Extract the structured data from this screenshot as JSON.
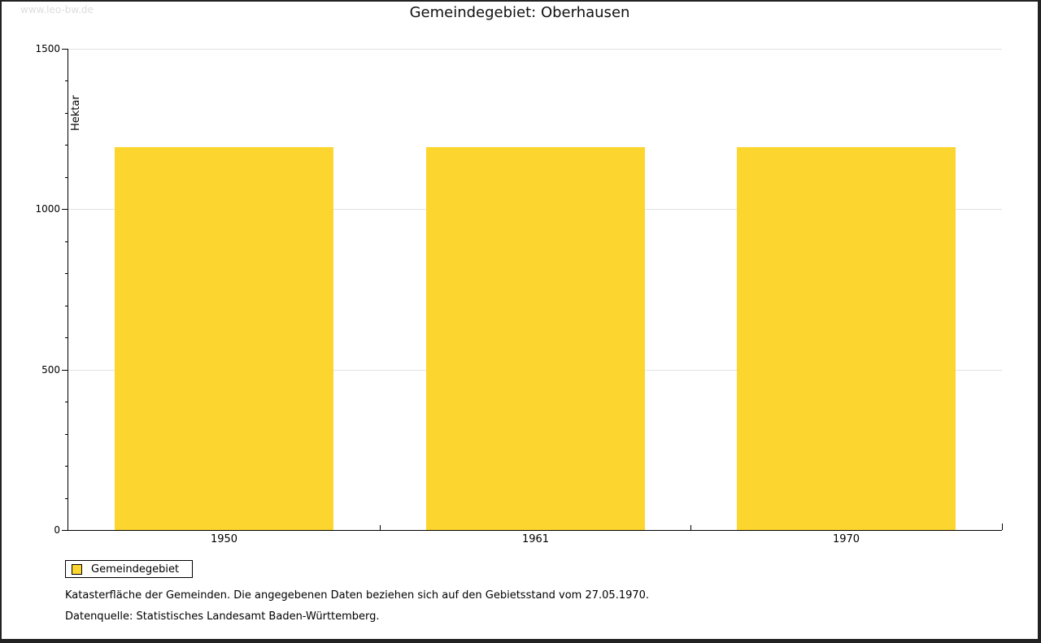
{
  "watermark": "www.leo-bw.de",
  "chart_data": {
    "type": "bar",
    "title": "Gemeindegebiet: Oberhausen",
    "xlabel": "",
    "ylabel": "Hektar",
    "categories": [
      "1950",
      "1961",
      "1970"
    ],
    "series": [
      {
        "name": "Gemeindegebiet",
        "values": [
          1193,
          1193,
          1193
        ],
        "color": "#fdd52f"
      }
    ],
    "ylim": [
      0,
      1500
    ],
    "ytick_major": 500,
    "ytick_minor": 100,
    "grid": "horizontal-major",
    "legend_position": "bottom-left"
  },
  "legend": {
    "label": "Gemeindegebiet",
    "swatch_color": "#fdd52f"
  },
  "footnotes": [
    "Katasterfläche der Gemeinden. Die angegebenen Daten beziehen sich auf den Gebietsstand vom 27.05.1970.",
    "Datenquelle: Statistisches Landesamt Baden-Württemberg."
  ],
  "colors": {
    "bar": "#fdd52f",
    "grid": "#e2e2e2",
    "axis": "#000000",
    "watermark": "#dddddd",
    "background": "#ffffff",
    "frame": "#222222"
  }
}
